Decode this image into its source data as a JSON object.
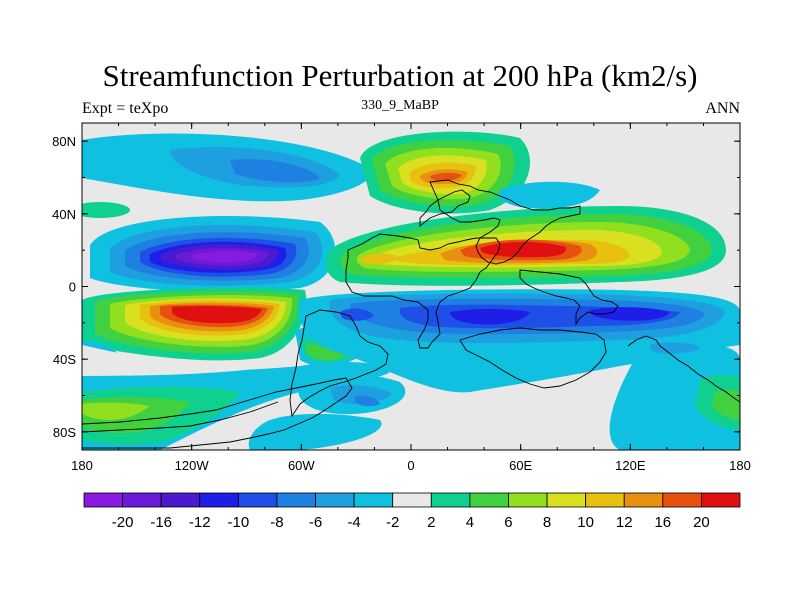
{
  "chart_data": {
    "type": "heatmap",
    "title": "Streamfunction Perturbation at 200 hPa (km2/s)",
    "left_label": "Expt = teXpo",
    "center_label": "330_9_MaBP",
    "right_label": "ANN",
    "x_ticks": [
      "180",
      "120W",
      "60W",
      "0",
      "60E",
      "120E",
      "180"
    ],
    "y_ticks": [
      "80N",
      "40N",
      "0",
      "40S",
      "80S"
    ],
    "xlim": [
      -180,
      180
    ],
    "ylim": [
      -90,
      90
    ],
    "colorbar": {
      "labels": [
        "-20",
        "-16",
        "-12",
        "-10",
        "-8",
        "-6",
        "-4",
        "-2",
        "2",
        "4",
        "6",
        "8",
        "10",
        "12",
        "16",
        "20"
      ],
      "colors": [
        "#8a1ae0",
        "#6a1ad8",
        "#4a1ad0",
        "#1e1ee8",
        "#1e50e8",
        "#1e80e0",
        "#1ea0e0",
        "#10c0e0",
        "#e8e8e8",
        "#10d090",
        "#40d040",
        "#90e020",
        "#d8e020",
        "#e8c010",
        "#e89010",
        "#e85010",
        "#e01010"
      ]
    }
  }
}
